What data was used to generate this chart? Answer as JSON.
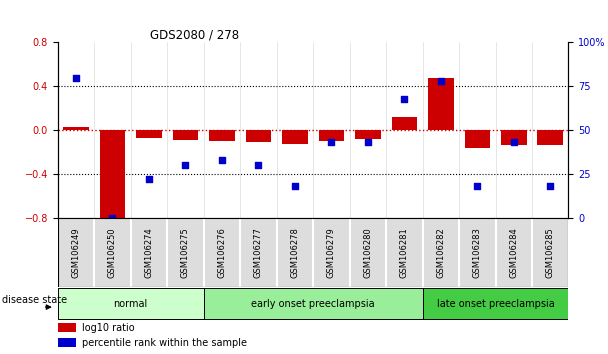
{
  "title": "GDS2080 / 278",
  "samples": [
    "GSM106249",
    "GSM106250",
    "GSM106274",
    "GSM106275",
    "GSM106276",
    "GSM106277",
    "GSM106278",
    "GSM106279",
    "GSM106280",
    "GSM106281",
    "GSM106282",
    "GSM106283",
    "GSM106284",
    "GSM106285"
  ],
  "log10_ratio": [
    0.03,
    -0.82,
    -0.07,
    -0.09,
    -0.1,
    -0.11,
    -0.13,
    -0.1,
    -0.08,
    0.12,
    0.48,
    -0.16,
    -0.14,
    -0.14
  ],
  "percentile_rank": [
    80,
    0,
    22,
    30,
    33,
    30,
    18,
    43,
    43,
    68,
    78,
    18,
    43,
    18
  ],
  "ylim_left": [
    -0.8,
    0.8
  ],
  "ylim_right": [
    0,
    100
  ],
  "bar_color": "#cc0000",
  "dot_color": "#0000cc",
  "groups": [
    {
      "label": "normal",
      "start": 0,
      "end": 3,
      "color": "#ccffcc"
    },
    {
      "label": "early onset preeclampsia",
      "start": 4,
      "end": 9,
      "color": "#99ee99"
    },
    {
      "label": "late onset preeclampsia",
      "start": 10,
      "end": 13,
      "color": "#44cc44"
    }
  ],
  "disease_state_label": "disease state",
  "legend_items": [
    {
      "label": "log10 ratio",
      "color": "#cc0000"
    },
    {
      "label": "percentile rank within the sample",
      "color": "#0000cc"
    }
  ],
  "yticks_left": [
    -0.8,
    -0.4,
    0.0,
    0.4,
    0.8
  ],
  "yticks_right": [
    0,
    25,
    50,
    75,
    100
  ],
  "dotted_lines": [
    -0.4,
    0.4
  ]
}
